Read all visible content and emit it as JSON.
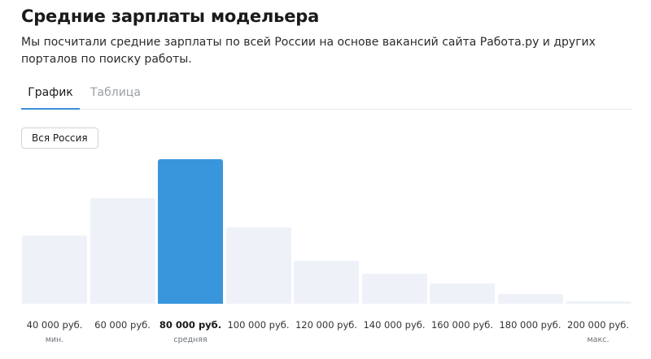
{
  "header": {
    "title": "Средние зарплаты модельера",
    "description": "Мы посчитали средние зарплаты по всей России на основе вакансий сайта Работа.ру и других порталов по поиску работы."
  },
  "tabs": [
    {
      "label": "График",
      "active": true
    },
    {
      "label": "Таблица",
      "active": false
    }
  ],
  "region_filter": {
    "label": "Вся Россия"
  },
  "colors": {
    "accent": "#3996dd",
    "bar": "#eef2f8",
    "tab_underline": "#3a8ddc"
  },
  "chart_data": {
    "type": "bar",
    "title": "",
    "xlabel": "",
    "ylabel": "",
    "unit": "руб.",
    "highlighted_index": 2,
    "categories": [
      "40 000 руб.",
      "60 000 руб.",
      "80 000 руб.",
      "100 000 руб.",
      "120 000 руб.",
      "140 000 руб.",
      "160 000 руб.",
      "180 000 руб.",
      "200 000 руб."
    ],
    "notes": [
      "мин.",
      "",
      "средняя",
      "",
      "",
      "",
      "",
      "",
      "макс."
    ],
    "values": [
      47,
      73,
      100,
      53,
      30,
      21,
      14,
      7,
      1.5
    ],
    "ylim": [
      0,
      100
    ],
    "grid": false,
    "legend": "none"
  }
}
